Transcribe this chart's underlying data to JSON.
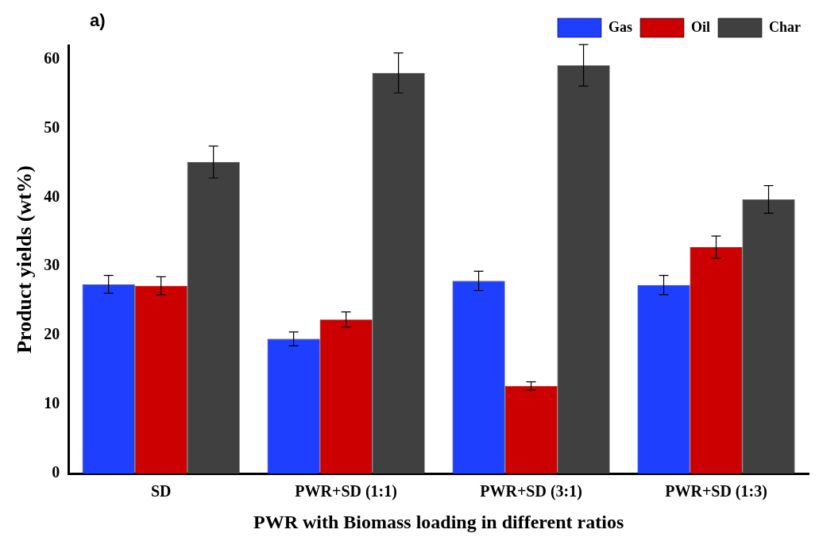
{
  "chart_data": {
    "type": "bar",
    "xlabel": "PWR with Biomass loading in different ratios",
    "ylabel": "Product yields (wt%)",
    "annotations": [
      "a)"
    ],
    "categories": [
      "SD",
      "PWR+SD (1:1)",
      "PWR+SD (3:1)",
      "PWR+SD (1:3)"
    ],
    "series": [
      {
        "name": "Gas",
        "color": "#1f3fff",
        "values": [
          27.4,
          19.5,
          27.9,
          27.3
        ],
        "errors": [
          1.3,
          1.0,
          1.4,
          1.4
        ]
      },
      {
        "name": "Oil",
        "color": "#cc0000",
        "values": [
          27.2,
          22.3,
          12.7,
          32.8
        ],
        "errors": [
          1.3,
          1.1,
          0.6,
          1.6
        ]
      },
      {
        "name": "Char",
        "color": "#404040",
        "values": [
          45.1,
          58.0,
          59.1,
          39.7
        ],
        "errors": [
          2.3,
          2.9,
          3.0,
          2.0
        ]
      }
    ],
    "ylim": [
      0,
      62
    ],
    "yticks": [
      0,
      10,
      20,
      30,
      40,
      50,
      60
    ],
    "grid": false,
    "legend": "top right"
  }
}
